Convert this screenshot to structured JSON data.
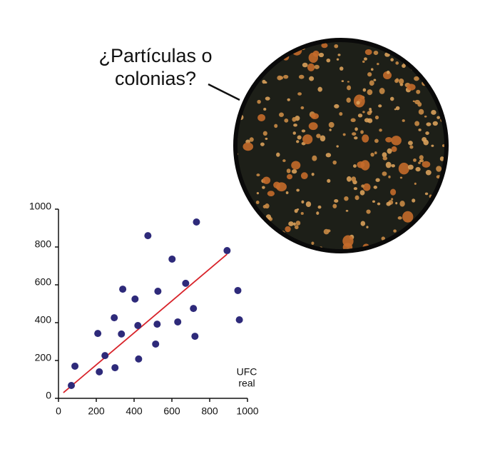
{
  "chart_data": {
    "type": "scatter",
    "annotation_lines": [
      "¿Partículas o",
      "colonias?"
    ],
    "xlabel_lines": [
      "UFC",
      "real"
    ],
    "x": [
      68,
      87,
      208,
      216,
      246,
      295,
      299,
      333,
      340,
      405,
      420,
      424,
      473,
      514,
      526,
      522,
      601,
      631,
      673,
      714,
      722,
      730,
      892,
      949,
      957
    ],
    "series": [
      {
        "color": "#2e2a7a",
        "values": [
          68,
          170,
          343,
          140,
          226,
          426,
          162,
          340,
          577,
          525,
          385,
          208,
          860,
          287,
          566,
          392,
          736,
          404,
          608,
          475,
          328,
          932,
          781,
          570,
          415
        ]
      }
    ],
    "trend_line": {
      "x": [
        26,
        892
      ],
      "y": [
        30,
        762
      ],
      "color": "#d8232a"
    },
    "xlim": [
      0,
      1000
    ],
    "ylim": [
      0,
      1000
    ],
    "xticks": [
      0,
      200,
      400,
      600,
      800,
      1000
    ],
    "yticks": [
      0,
      200,
      400,
      600,
      800,
      1000
    ]
  }
}
